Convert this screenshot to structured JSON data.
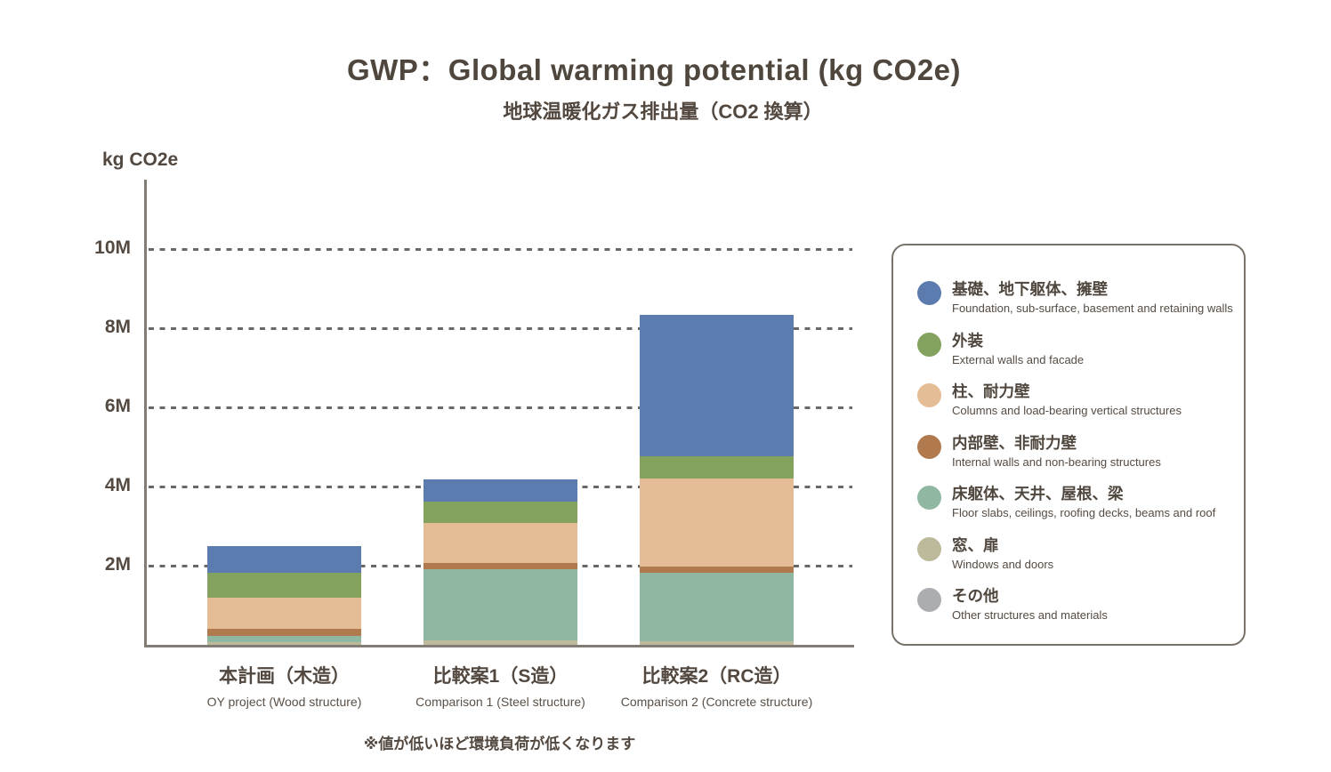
{
  "header": {
    "title": "GWP：Global warming potential (kg CO2e)",
    "subtitle": "地球温暖化ガス排出量（CO2 換算）"
  },
  "footnote": "※値が低いほど環境負荷が低くなります",
  "chart_data": {
    "type": "bar",
    "stacked": true,
    "title": "GWP：Global warming potential (kg CO2e)",
    "subtitle": "地球温暖化ガス排出量（CO2 換算）",
    "ylabel": "kg CO2e",
    "unit": "kg CO2e",
    "ylim_M": [
      0,
      11
    ],
    "grid": "dashed-horizontal",
    "legend_position": "right",
    "yticks": [
      {
        "label": "2M",
        "value_M": 2
      },
      {
        "label": "4M",
        "value_M": 4
      },
      {
        "label": "6M",
        "value_M": 6
      },
      {
        "label": "8M",
        "value_M": 8
      },
      {
        "label": "10M",
        "value_M": 10
      }
    ],
    "categories": [
      {
        "ja": "本計画（木造）",
        "en": "OY project (Wood structure)"
      },
      {
        "ja": "比較案1（S造）",
        "en": "Comparison 1 (Steel structure)"
      },
      {
        "ja": "比較案2（RC造）",
        "en": "Comparison 2 (Concrete structure)"
      }
    ],
    "series": [
      {
        "name_ja": "基礎、地下躯体、擁壁",
        "name_en": "Foundation, sub-surface, basement and retaining walls",
        "color": "#5c7bae",
        "values_M": [
          0.67,
          0.55,
          3.57
        ]
      },
      {
        "name_ja": "外装",
        "name_en": "External walls and facade",
        "color": "#82a25e",
        "values_M": [
          0.63,
          0.54,
          0.56
        ]
      },
      {
        "name_ja": "柱、耐力壁",
        "name_en": "Columns and load-bearing vertical structures",
        "color": "#e4bd96",
        "values_M": [
          0.79,
          1.03,
          2.22
        ]
      },
      {
        "name_ja": "内部壁、非耐力壁",
        "name_en": "Internal walls and non-bearing structures",
        "color": "#b1794e",
        "values_M": [
          0.18,
          0.15,
          0.17
        ]
      },
      {
        "name_ja": "床躯体、天井、屋根、梁",
        "name_en": "Floor slabs, ceilings, roofing decks, beams and roof",
        "color": "#90b7a2",
        "values_M": [
          0.15,
          1.8,
          1.71
        ]
      },
      {
        "name_ja": "窓、扉",
        "name_en": "Windows and doors",
        "color": "#bdba9b",
        "values_M": [
          0.07,
          0.11,
          0.1
        ]
      },
      {
        "name_ja": "その他",
        "name_en": "Other structures and materials",
        "color": "#acadb0",
        "values_M": [
          0,
          0,
          0
        ]
      }
    ],
    "stack_order_bottom_to_top": [
      "その他",
      "窓、扉",
      "床躯体、天井、屋根、梁",
      "内部壁、非耐力壁",
      "柱、耐力壁",
      "外装",
      "基礎、地下躯体、擁壁"
    ],
    "totals_M": [
      2.49,
      4.18,
      8.33
    ],
    "footnote": "※値が低いほど環境負荷が低くなります"
  },
  "layout_colors": {
    "text": "#52483f",
    "axis": "#817c76",
    "grid_dash": "#686868",
    "legend_border": "#79726b"
  }
}
